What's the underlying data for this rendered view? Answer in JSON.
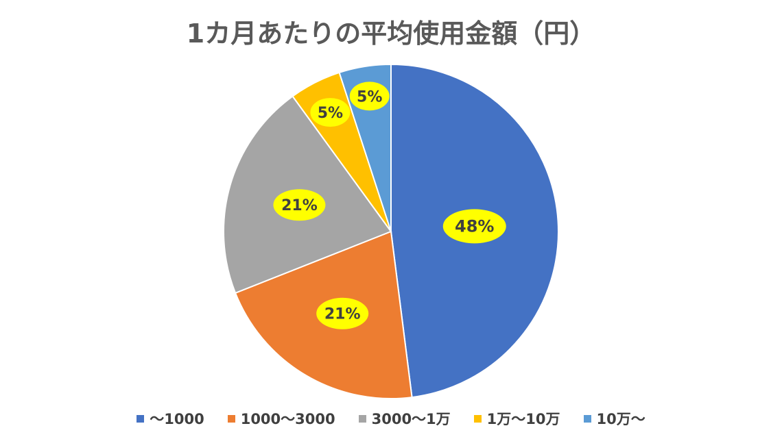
{
  "chart_data": {
    "type": "pie",
    "title": "1カ月あたりの平均使用金額（円）",
    "slices": [
      {
        "label": "～1000",
        "value": 48,
        "value_label": "48%",
        "color": "#4472C4"
      },
      {
        "label": "1000～3000",
        "value": 21,
        "value_label": "21%",
        "color": "#ED7D31"
      },
      {
        "label": "3000～1万",
        "value": 21,
        "value_label": "21%",
        "color": "#A5A5A5"
      },
      {
        "label": "1万～10万",
        "value": 5,
        "value_label": "5%",
        "color": "#FFC000"
      },
      {
        "label": "10万～",
        "value": 5,
        "value_label": "5%",
        "color": "#5B9BD5"
      }
    ],
    "legend_position": "bottom",
    "label_badge_color": "#FFFF00"
  }
}
